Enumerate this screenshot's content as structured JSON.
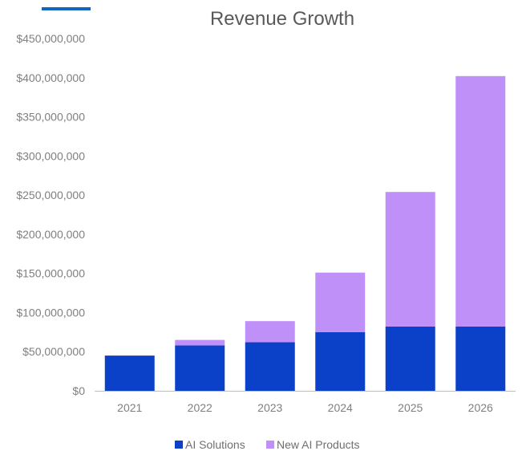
{
  "chart_data": {
    "type": "bar",
    "stacked": true,
    "title": "Revenue Growth",
    "xlabel": "",
    "ylabel": "",
    "categories": [
      "2021",
      "2022",
      "2023",
      "2024",
      "2025",
      "2026"
    ],
    "series": [
      {
        "name": "AI Solutions",
        "color": "#0b41c8",
        "values": [
          45000000,
          58000000,
          62000000,
          75000000,
          82000000,
          82000000
        ]
      },
      {
        "name": "New AI Products",
        "color": "#bf90f7",
        "values": [
          0,
          7000000,
          27000000,
          76000000,
          172000000,
          320000000
        ]
      }
    ],
    "ylim": [
      0,
      450000000
    ],
    "yticks": [
      "$0",
      "$50,000,000",
      "$100,000,000",
      "$150,000,000",
      "$200,000,000",
      "$250,000,000",
      "$300,000,000",
      "$350,000,000",
      "$400,000,000",
      "$450,000,000"
    ],
    "grid": false,
    "legend_position": "bottom",
    "accent_color": "#1565c0"
  }
}
